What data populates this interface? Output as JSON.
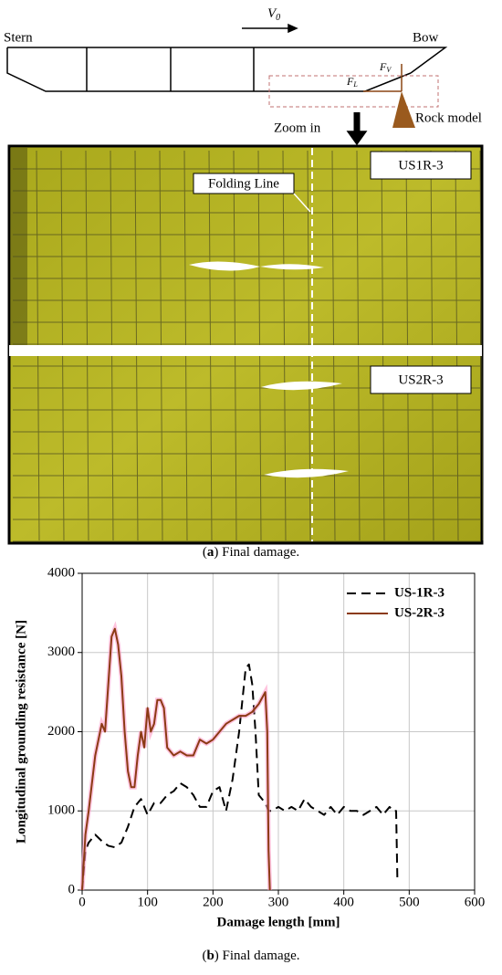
{
  "schematic": {
    "stern": "Stern",
    "bow": "Bow",
    "velocity": {
      "symbol": "V",
      "sub": "0"
    },
    "force_v": {
      "symbol": "F",
      "sub": "V"
    },
    "force_l": {
      "symbol": "F",
      "sub": "L"
    },
    "rock_model": "Rock model",
    "zoom_in": "Zoom in"
  },
  "photo": {
    "label_top": "US1R-3",
    "label_bottom": "US2R-3",
    "folding_line": "Folding Line"
  },
  "caption_a": {
    "open": "(",
    "letter": "a",
    "rest": ") Final damage."
  },
  "caption_b": {
    "open": "(",
    "letter": "b",
    "rest": ") Final damage."
  },
  "chart_data": {
    "type": "line",
    "x_label": "Damage length [mm]",
    "y_label": "Longitudinal grounding resistance [N]",
    "xlim": [
      0,
      600
    ],
    "xticks": [
      0,
      100,
      200,
      300,
      400,
      500,
      600
    ],
    "ylim": [
      0,
      4000
    ],
    "yticks": [
      0,
      1000,
      2000,
      3000,
      4000
    ],
    "grid": true,
    "legend": "upper right",
    "series": [
      {
        "name": "US-1R-3",
        "color": "#000000",
        "dashed": true,
        "x": [
          0,
          5,
          10,
          20,
          30,
          40,
          50,
          60,
          70,
          80,
          90,
          100,
          110,
          120,
          130,
          140,
          150,
          160,
          170,
          180,
          190,
          200,
          210,
          220,
          230,
          240,
          250,
          255,
          260,
          265,
          270,
          280,
          285,
          290,
          300,
          310,
          320,
          330,
          340,
          350,
          360,
          370,
          380,
          390,
          400,
          410,
          420,
          430,
          440,
          450,
          460,
          470,
          475,
          480,
          482
        ],
        "values": [
          0,
          500,
          600,
          700,
          620,
          560,
          540,
          600,
          800,
          1050,
          1150,
          950,
          1100,
          1100,
          1200,
          1250,
          1350,
          1300,
          1200,
          1050,
          1050,
          1250,
          1300,
          1000,
          1400,
          2000,
          2800,
          2850,
          2600,
          2000,
          1200,
          1100,
          1000,
          1000,
          1050,
          1000,
          1050,
          1000,
          1150,
          1050,
          1000,
          950,
          1050,
          950,
          1050,
          1000,
          1000,
          950,
          1000,
          1050,
          950,
          1050,
          1000,
          1000,
          100
        ]
      },
      {
        "name": "US-2R-3",
        "color": "#8b3a14",
        "dashed": false,
        "x": [
          0,
          5,
          10,
          20,
          30,
          35,
          40,
          45,
          50,
          55,
          60,
          65,
          70,
          75,
          80,
          85,
          90,
          95,
          100,
          105,
          110,
          115,
          120,
          125,
          130,
          140,
          150,
          160,
          170,
          180,
          190,
          200,
          210,
          220,
          230,
          240,
          250,
          260,
          270,
          280,
          283,
          285,
          287
        ],
        "values": [
          0,
          700,
          1000,
          1700,
          2100,
          2000,
          2600,
          3200,
          3300,
          3100,
          2700,
          2000,
          1500,
          1300,
          1300,
          1700,
          2000,
          1800,
          2300,
          2000,
          2100,
          2400,
          2400,
          2300,
          1800,
          1700,
          1750,
          1700,
          1700,
          1900,
          1850,
          1900,
          2000,
          2100,
          2150,
          2200,
          2200,
          2250,
          2350,
          2500,
          2000,
          500,
          0
        ]
      }
    ]
  }
}
